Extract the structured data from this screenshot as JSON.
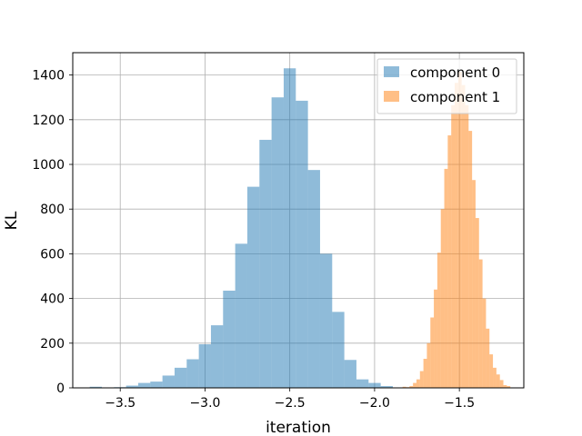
{
  "chart_data": {
    "type": "histogram",
    "title": "",
    "xlabel": "iteration",
    "ylabel": "KL",
    "xlim": [
      -3.78,
      -1.12
    ],
    "ylim": [
      0,
      1500
    ],
    "xticks": [
      -3.5,
      -3.0,
      -2.5,
      -2.0,
      -1.5
    ],
    "xtick_labels": [
      "−3.5",
      "−3.0",
      "−2.5",
      "−2.0",
      "−1.5"
    ],
    "yticks": [
      0,
      200,
      400,
      600,
      800,
      1000,
      1200,
      1400
    ],
    "ytick_labels": [
      "0",
      "200",
      "400",
      "600",
      "800",
      "1000",
      "1200",
      "1400"
    ],
    "grid": true,
    "legend_position": "top-right",
    "series": [
      {
        "name": "component 0",
        "color": "#1f77b4",
        "alpha": 0.5,
        "bin_start": -3.68,
        "bin_width": 0.0715,
        "values": [
          5,
          0,
          3,
          10,
          22,
          28,
          55,
          90,
          128,
          195,
          280,
          435,
          645,
          900,
          1110,
          1300,
          1430,
          1285,
          975,
          600,
          340,
          125,
          38,
          22,
          8
        ]
      },
      {
        "name": "component 1",
        "color": "#ff7f0e",
        "alpha": 0.5,
        "bin_start": -1.835,
        "bin_width": 0.0205,
        "values": [
          5,
          3,
          8,
          22,
          38,
          75,
          130,
          200,
          315,
          440,
          605,
          800,
          980,
          1130,
          1265,
          1365,
          1415,
          1355,
          1265,
          1150,
          930,
          760,
          575,
          400,
          265,
          150,
          90,
          60,
          35,
          12,
          8
        ]
      }
    ]
  }
}
